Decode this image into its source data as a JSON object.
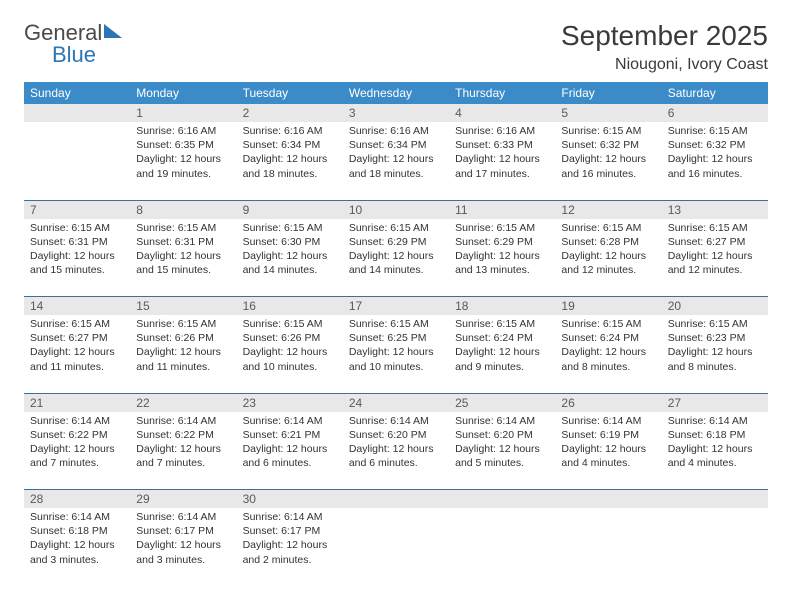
{
  "logo": {
    "word1": "General",
    "word2": "Blue"
  },
  "title": "September 2025",
  "subtitle": "Niougoni, Ivory Coast",
  "colors": {
    "header_bg": "#3b8bc9",
    "header_text": "#ffffff",
    "daynum_bg": "#e8e8e8",
    "daynum_text": "#5a5a5a",
    "rule": "#3b6fa0",
    "logo_blue": "#2e75b6",
    "logo_gray": "#4a4a4a",
    "body_text": "#333333",
    "background": "#ffffff"
  },
  "typography": {
    "title_fontsize": 28,
    "subtitle_fontsize": 16,
    "header_fontsize": 12,
    "daynum_fontsize": 12,
    "cell_fontsize": 10.5,
    "font_family": "Arial"
  },
  "layout": {
    "columns": 7,
    "rows": 5,
    "first_weekday_index": 1,
    "days_in_month": 30
  },
  "weekdays": [
    "Sunday",
    "Monday",
    "Tuesday",
    "Wednesday",
    "Thursday",
    "Friday",
    "Saturday"
  ],
  "days": {
    "1": {
      "sunrise": "6:16 AM",
      "sunset": "6:35 PM",
      "daylight": "12 hours and 19 minutes."
    },
    "2": {
      "sunrise": "6:16 AM",
      "sunset": "6:34 PM",
      "daylight": "12 hours and 18 minutes."
    },
    "3": {
      "sunrise": "6:16 AM",
      "sunset": "6:34 PM",
      "daylight": "12 hours and 18 minutes."
    },
    "4": {
      "sunrise": "6:16 AM",
      "sunset": "6:33 PM",
      "daylight": "12 hours and 17 minutes."
    },
    "5": {
      "sunrise": "6:15 AM",
      "sunset": "6:32 PM",
      "daylight": "12 hours and 16 minutes."
    },
    "6": {
      "sunrise": "6:15 AM",
      "sunset": "6:32 PM",
      "daylight": "12 hours and 16 minutes."
    },
    "7": {
      "sunrise": "6:15 AM",
      "sunset": "6:31 PM",
      "daylight": "12 hours and 15 minutes."
    },
    "8": {
      "sunrise": "6:15 AM",
      "sunset": "6:31 PM",
      "daylight": "12 hours and 15 minutes."
    },
    "9": {
      "sunrise": "6:15 AM",
      "sunset": "6:30 PM",
      "daylight": "12 hours and 14 minutes."
    },
    "10": {
      "sunrise": "6:15 AM",
      "sunset": "6:29 PM",
      "daylight": "12 hours and 14 minutes."
    },
    "11": {
      "sunrise": "6:15 AM",
      "sunset": "6:29 PM",
      "daylight": "12 hours and 13 minutes."
    },
    "12": {
      "sunrise": "6:15 AM",
      "sunset": "6:28 PM",
      "daylight": "12 hours and 12 minutes."
    },
    "13": {
      "sunrise": "6:15 AM",
      "sunset": "6:27 PM",
      "daylight": "12 hours and 12 minutes."
    },
    "14": {
      "sunrise": "6:15 AM",
      "sunset": "6:27 PM",
      "daylight": "12 hours and 11 minutes."
    },
    "15": {
      "sunrise": "6:15 AM",
      "sunset": "6:26 PM",
      "daylight": "12 hours and 11 minutes."
    },
    "16": {
      "sunrise": "6:15 AM",
      "sunset": "6:26 PM",
      "daylight": "12 hours and 10 minutes."
    },
    "17": {
      "sunrise": "6:15 AM",
      "sunset": "6:25 PM",
      "daylight": "12 hours and 10 minutes."
    },
    "18": {
      "sunrise": "6:15 AM",
      "sunset": "6:24 PM",
      "daylight": "12 hours and 9 minutes."
    },
    "19": {
      "sunrise": "6:15 AM",
      "sunset": "6:24 PM",
      "daylight": "12 hours and 8 minutes."
    },
    "20": {
      "sunrise": "6:15 AM",
      "sunset": "6:23 PM",
      "daylight": "12 hours and 8 minutes."
    },
    "21": {
      "sunrise": "6:14 AM",
      "sunset": "6:22 PM",
      "daylight": "12 hours and 7 minutes."
    },
    "22": {
      "sunrise": "6:14 AM",
      "sunset": "6:22 PM",
      "daylight": "12 hours and 7 minutes."
    },
    "23": {
      "sunrise": "6:14 AM",
      "sunset": "6:21 PM",
      "daylight": "12 hours and 6 minutes."
    },
    "24": {
      "sunrise": "6:14 AM",
      "sunset": "6:20 PM",
      "daylight": "12 hours and 6 minutes."
    },
    "25": {
      "sunrise": "6:14 AM",
      "sunset": "6:20 PM",
      "daylight": "12 hours and 5 minutes."
    },
    "26": {
      "sunrise": "6:14 AM",
      "sunset": "6:19 PM",
      "daylight": "12 hours and 4 minutes."
    },
    "27": {
      "sunrise": "6:14 AM",
      "sunset": "6:18 PM",
      "daylight": "12 hours and 4 minutes."
    },
    "28": {
      "sunrise": "6:14 AM",
      "sunset": "6:18 PM",
      "daylight": "12 hours and 3 minutes."
    },
    "29": {
      "sunrise": "6:14 AM",
      "sunset": "6:17 PM",
      "daylight": "12 hours and 3 minutes."
    },
    "30": {
      "sunrise": "6:14 AM",
      "sunset": "6:17 PM",
      "daylight": "12 hours and 2 minutes."
    }
  },
  "labels": {
    "sunrise_prefix": "Sunrise: ",
    "sunset_prefix": "Sunset: ",
    "daylight_prefix": "Daylight: "
  }
}
